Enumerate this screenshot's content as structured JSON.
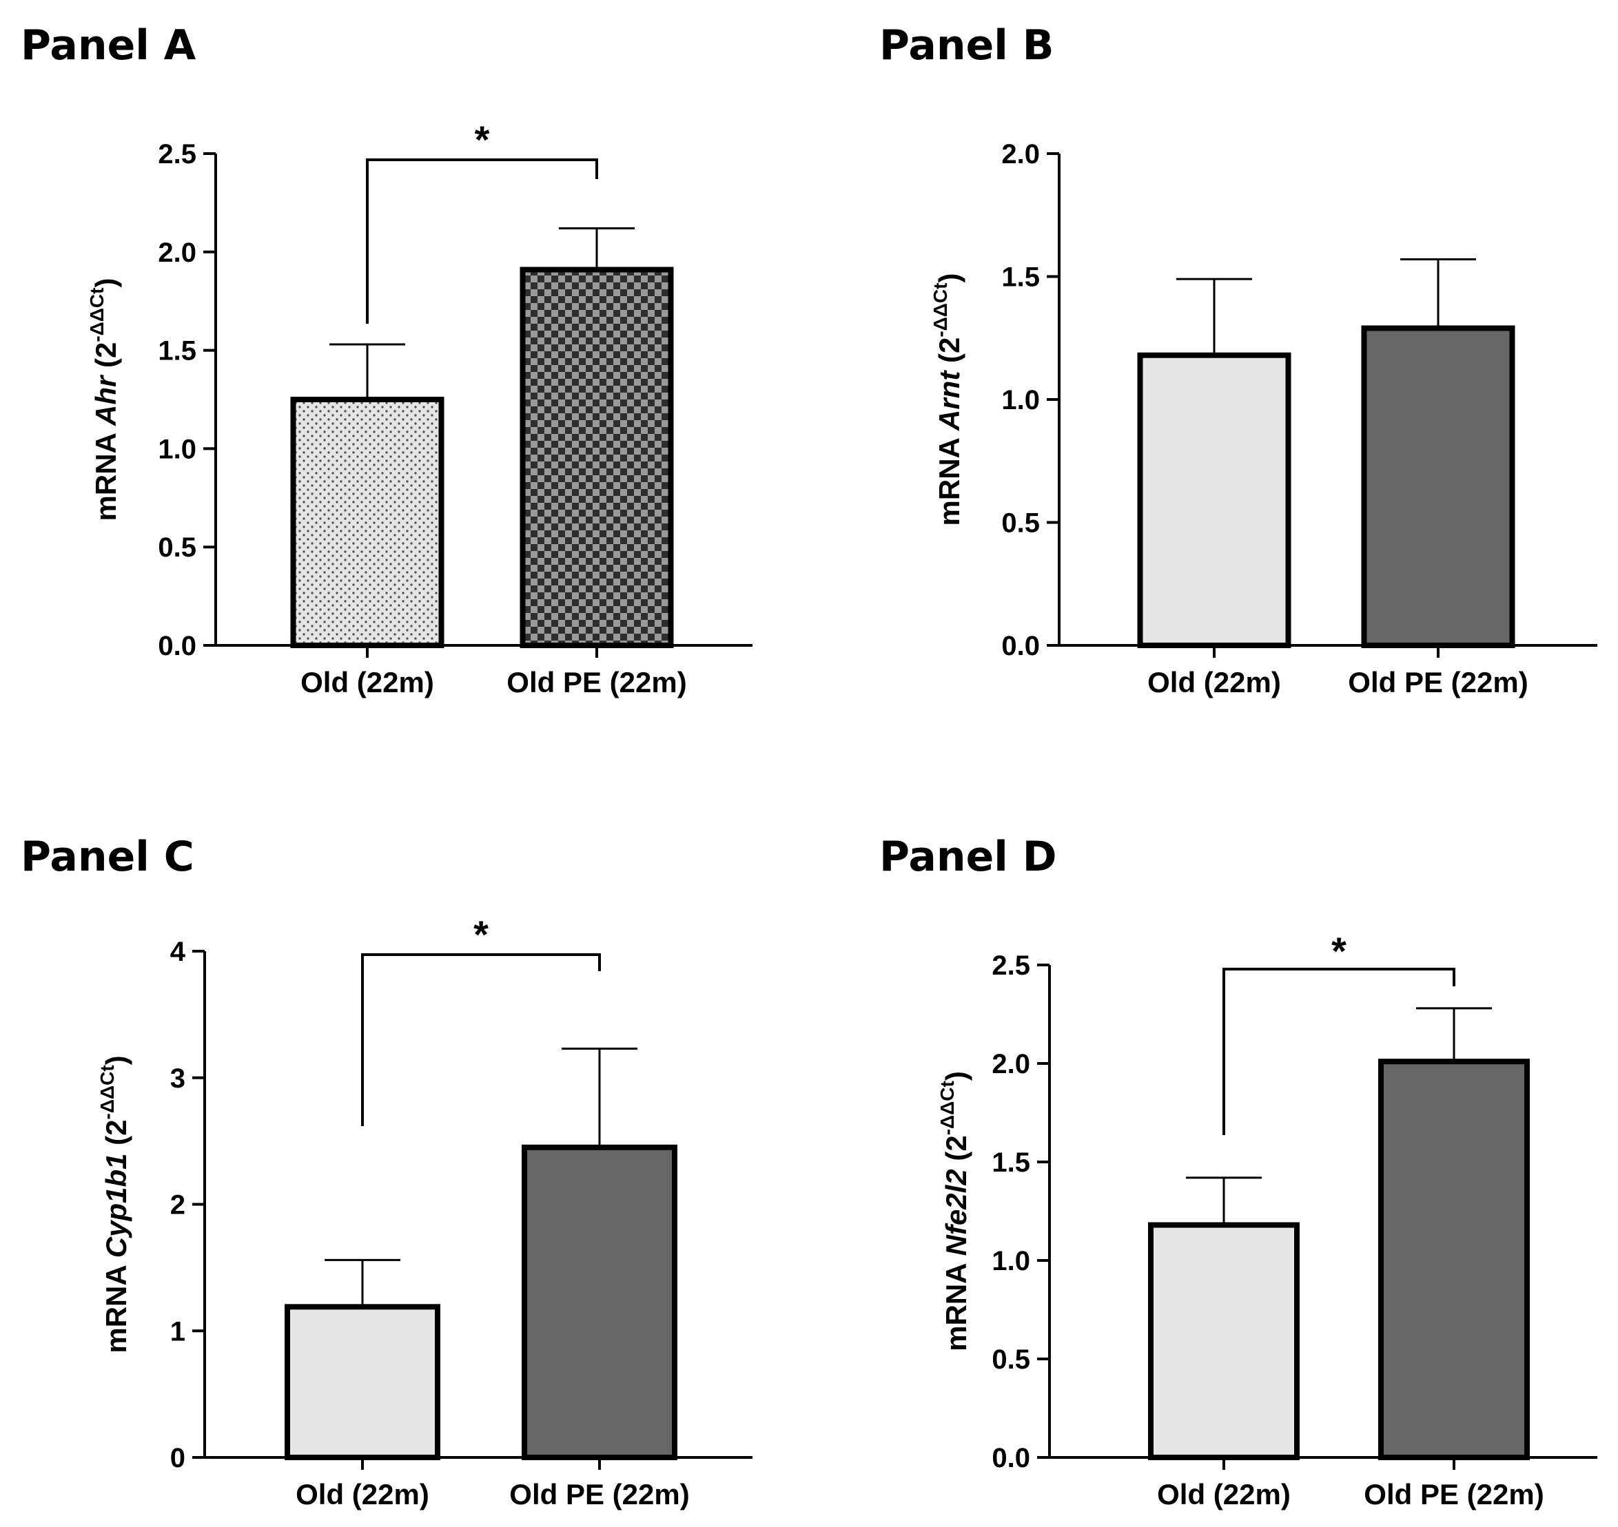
{
  "chart_data": [
    {
      "panel_label": "Panel A",
      "type": "bar",
      "categories": [
        "Old (22m)",
        "Old PE (22m)"
      ],
      "values": [
        1.25,
        1.91
      ],
      "errors": [
        0.28,
        0.21
      ],
      "ylim": [
        0,
        2.5
      ],
      "yticks": [
        "0.0",
        "0.5",
        "1.0",
        "1.5",
        "2.0",
        "2.5"
      ],
      "ylabel": {
        "prefix": "mRNA ",
        "gene": "Ahr",
        "unit_open": " (2",
        "superscript": "-ΔΔCt",
        "unit_close": ")"
      },
      "xlabel": "",
      "significance": "*",
      "bar_patterns": [
        "dots",
        "checker"
      ],
      "bar_colors": [
        "#e6e6e6",
        "#606060"
      ]
    },
    {
      "panel_label": "Panel B",
      "type": "bar",
      "categories": [
        "Old (22m)",
        "Old PE (22m)"
      ],
      "values": [
        1.18,
        1.29
      ],
      "errors": [
        0.31,
        0.28
      ],
      "ylim": [
        0,
        2.0
      ],
      "yticks": [
        "0.0",
        "0.5",
        "1.0",
        "1.5",
        "2.0"
      ],
      "ylabel": {
        "prefix": "mRNA ",
        "gene": "Arnt",
        "unit_open": " (2",
        "superscript": "-ΔΔCt",
        "unit_close": ")"
      },
      "xlabel": "",
      "significance": "",
      "bar_patterns": [
        "solid",
        "solid"
      ],
      "bar_colors": [
        "#e6e6e6",
        "#666666"
      ]
    },
    {
      "panel_label": "Panel C",
      "type": "bar",
      "categories": [
        "Old (22m)",
        "Old PE (22m)"
      ],
      "values": [
        1.19,
        2.45
      ],
      "errors": [
        0.37,
        0.78
      ],
      "ylim": [
        0,
        4
      ],
      "yticks": [
        "0",
        "1",
        "2",
        "3",
        "4"
      ],
      "ylabel": {
        "prefix": "mRNA ",
        "gene": "Cyp1b1",
        "unit_open": " (2",
        "superscript": "-ΔΔCt",
        "unit_close": ")"
      },
      "xlabel": "",
      "significance": "*",
      "bar_patterns": [
        "solid",
        "solid"
      ],
      "bar_colors": [
        "#e6e6e6",
        "#666666"
      ]
    },
    {
      "panel_label": "Panel D",
      "type": "bar",
      "categories": [
        "Old (22m)",
        "Old PE (22m)"
      ],
      "values": [
        1.18,
        2.01
      ],
      "errors": [
        0.24,
        0.27
      ],
      "ylim": [
        0,
        2.5
      ],
      "yticks": [
        "0.0",
        "0.5",
        "1.0",
        "1.5",
        "2.0",
        "2.5"
      ],
      "ylabel": {
        "prefix": "mRNA ",
        "gene": "Nfe2l2",
        "unit_open": " (2",
        "superscript": "-ΔΔCt",
        "unit_close": ")"
      },
      "xlabel": "",
      "significance": "*",
      "bar_patterns": [
        "solid",
        "solid"
      ],
      "bar_colors": [
        "#e6e6e6",
        "#666666"
      ]
    }
  ]
}
